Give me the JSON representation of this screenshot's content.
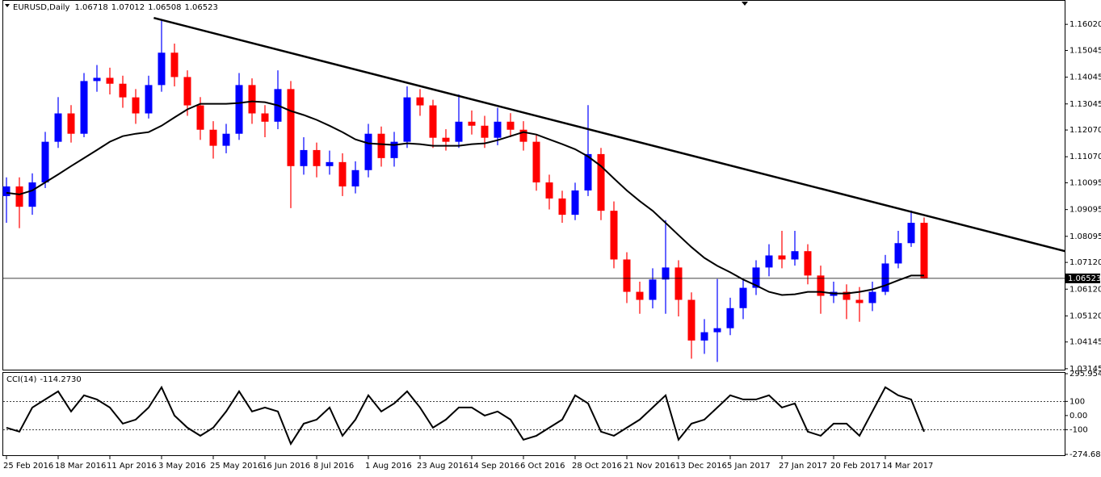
{
  "header": {
    "symbol": "EURUSD,Daily",
    "open": 1.06718,
    "high": 1.07012,
    "low": 1.06508,
    "close": 1.06523
  },
  "chart_data": [
    {
      "type": "candlestick",
      "categories": [
        "25 Feb 2016",
        null,
        null,
        null,
        "18 Mar 2016",
        null,
        null,
        null,
        "11 Apr 2016",
        null,
        null,
        null,
        "3 May 2016",
        null,
        null,
        null,
        "25 May 2016",
        null,
        null,
        null,
        "16 Jun 2016",
        null,
        null,
        null,
        "8 Jul 2016",
        null,
        null,
        null,
        "1 Aug 2016",
        null,
        null,
        null,
        "23 Aug 2016",
        null,
        null,
        null,
        "14 Sep 2016",
        null,
        null,
        null,
        "6 Oct 2016",
        null,
        null,
        null,
        "28 Oct 2016",
        null,
        null,
        null,
        "21 Nov 2016",
        null,
        null,
        null,
        "13 Dec 2016",
        null,
        null,
        null,
        "5 Jan 2017",
        null,
        null,
        null,
        "27 Jan 2017",
        null,
        null,
        null,
        "20 Feb 2017",
        null,
        null,
        null,
        "14 Mar 2017",
        null,
        null,
        null
      ],
      "open": [
        1.096,
        1.0996,
        1.092,
        1.1011,
        1.1163,
        1.1269,
        1.1193,
        1.139,
        1.1402,
        1.138,
        1.1329,
        1.1269,
        1.1375,
        1.1496,
        1.1405,
        1.1299,
        1.1208,
        1.1148,
        1.1193,
        1.1375,
        1.1269,
        1.1238,
        1.136,
        1.1072,
        1.1132,
        1.1072,
        1.1087,
        1.0996,
        1.1057,
        1.1193,
        1.1102,
        1.1163,
        1.1329,
        1.1299,
        1.1178,
        1.1163,
        1.1238,
        1.1223,
        1.1178,
        1.1238,
        1.1208,
        1.1163,
        1.1011,
        1.0951,
        1.089,
        1.0981,
        1.1117,
        1.0905,
        1.0723,
        1.0602,
        1.0572,
        1.0648,
        1.0693,
        1.0572,
        1.042,
        1.0451,
        1.0466,
        1.0541,
        1.0617,
        1.0693,
        1.0738,
        1.0723,
        1.0754,
        1.0663,
        1.0587,
        1.0602,
        1.0572,
        1.056,
        1.0602,
        1.0708,
        1.0784,
        1.086
      ],
      "high": [
        1.103,
        1.103,
        1.1045,
        1.12,
        1.133,
        1.13,
        1.142,
        1.145,
        1.144,
        1.141,
        1.136,
        1.141,
        1.1616,
        1.153,
        1.143,
        1.133,
        1.124,
        1.123,
        1.142,
        1.14,
        1.13,
        1.143,
        1.139,
        1.118,
        1.116,
        1.113,
        1.112,
        1.109,
        1.123,
        1.122,
        1.12,
        1.137,
        1.136,
        1.132,
        1.121,
        1.134,
        1.128,
        1.126,
        1.129,
        1.127,
        1.124,
        1.119,
        1.104,
        1.098,
        1.101,
        1.13,
        1.114,
        1.094,
        1.075,
        1.064,
        1.069,
        1.087,
        1.072,
        1.06,
        1.05,
        1.065,
        1.058,
        1.065,
        1.072,
        1.078,
        1.083,
        1.083,
        1.078,
        1.07,
        1.064,
        1.063,
        1.062,
        1.064,
        1.074,
        1.083,
        1.0906,
        1.088
      ],
      "low": [
        1.086,
        1.084,
        1.089,
        1.099,
        1.114,
        1.116,
        1.118,
        1.135,
        1.134,
        1.129,
        1.123,
        1.125,
        1.135,
        1.137,
        1.126,
        1.117,
        1.11,
        1.112,
        1.117,
        1.123,
        1.118,
        1.121,
        1.0915,
        1.104,
        1.103,
        1.104,
        1.096,
        1.097,
        1.103,
        1.107,
        1.107,
        1.114,
        1.126,
        1.114,
        1.113,
        1.114,
        1.119,
        1.114,
        1.115,
        1.118,
        1.113,
        1.098,
        1.091,
        1.086,
        1.087,
        1.096,
        1.087,
        1.069,
        1.056,
        1.052,
        1.054,
        1.052,
        1.051,
        1.0352,
        1.037,
        1.034,
        1.044,
        1.05,
        1.059,
        1.066,
        1.069,
        1.07,
        1.063,
        1.052,
        1.056,
        1.05,
        1.049,
        1.053,
        1.059,
        1.069,
        1.077,
        1.06508
      ],
      "close": [
        1.0996,
        1.092,
        1.1011,
        1.1163,
        1.1269,
        1.1193,
        1.139,
        1.1402,
        1.138,
        1.1329,
        1.1269,
        1.1375,
        1.1496,
        1.1405,
        1.1299,
        1.1208,
        1.1148,
        1.1193,
        1.1375,
        1.1269,
        1.1238,
        1.136,
        1.1072,
        1.1132,
        1.1072,
        1.1087,
        1.0996,
        1.1057,
        1.1193,
        1.1102,
        1.1163,
        1.1329,
        1.1299,
        1.1178,
        1.1163,
        1.1238,
        1.1223,
        1.1178,
        1.1238,
        1.1208,
        1.1163,
        1.1011,
        1.0951,
        1.089,
        1.0981,
        1.1117,
        1.0905,
        1.0723,
        1.0602,
        1.0572,
        1.0648,
        1.0693,
        1.0572,
        1.042,
        1.0451,
        1.0466,
        1.0541,
        1.0617,
        1.0693,
        1.0738,
        1.0723,
        1.0754,
        1.0663,
        1.0587,
        1.0602,
        1.0572,
        1.056,
        1.0602,
        1.0708,
        1.0784,
        1.086,
        1.06523
      ],
      "up_color": "#0000ff",
      "down_color": "#ff0000",
      "ma": {
        "color": "#000000",
        "values": [
          1.0972,
          1.0966,
          1.0981,
          1.1011,
          1.1041,
          1.1072,
          1.1102,
          1.1132,
          1.1163,
          1.1184,
          1.1193,
          1.1199,
          1.1223,
          1.1254,
          1.1284,
          1.1305,
          1.1305,
          1.1305,
          1.1308,
          1.1314,
          1.1311,
          1.1299,
          1.1278,
          1.1263,
          1.1245,
          1.1223,
          1.1199,
          1.1172,
          1.1157,
          1.1154,
          1.1151,
          1.1157,
          1.1154,
          1.1148,
          1.1148,
          1.1148,
          1.1154,
          1.1157,
          1.1169,
          1.1184,
          1.1199,
          1.119,
          1.1172,
          1.1154,
          1.1135,
          1.1108,
          1.1072,
          1.1026,
          1.0981,
          1.0941,
          1.0905,
          1.086,
          1.0814,
          1.0769,
          1.0729,
          1.0699,
          1.0675,
          1.0648,
          1.0626,
          1.0602,
          1.059,
          1.0593,
          1.0602,
          1.0602,
          1.0596,
          1.0596,
          1.0602,
          1.0611,
          1.0626,
          1.0645,
          1.0663,
          1.0663
        ]
      },
      "trendline": {
        "x": [
          11.4,
          81.9
        ],
        "values": [
          1.1626,
          1.0754
        ]
      },
      "current_price": 1.06523,
      "ylim": [
        1.0305,
        1.1693
      ],
      "yticks": [
        {
          "value": 1.1602,
          "label": "1.16020"
        },
        {
          "value": 1.15045,
          "label": "1.15045"
        },
        {
          "value": 1.14045,
          "label": "1.14045"
        },
        {
          "value": 1.13045,
          "label": "1.13045"
        },
        {
          "value": 1.1207,
          "label": "1.12070"
        },
        {
          "value": 1.1107,
          "label": "1.11070"
        },
        {
          "value": 1.10095,
          "label": "1.10095"
        },
        {
          "value": 1.09095,
          "label": "1.09095"
        },
        {
          "value": 1.08095,
          "label": "1.08095"
        },
        {
          "value": 1.0712,
          "label": "1.07120"
        },
        {
          "value": 1.0612,
          "label": "1.06120"
        },
        {
          "value": 1.0512,
          "label": "1.05120"
        },
        {
          "value": 1.04145,
          "label": "1.04145"
        },
        {
          "value": 1.03145,
          "label": "1.03145"
        }
      ]
    },
    {
      "type": "line",
      "title": "CCI(14)",
      "current_value": {
        "value": -114.273,
        "label": "-114.2730"
      },
      "color": "#000000",
      "values": [
        -86,
        -114,
        57,
        114,
        171,
        29,
        143,
        114,
        57,
        -57,
        -29,
        57,
        200,
        0,
        -86,
        -143,
        -86,
        29,
        171,
        29,
        57,
        29,
        -200,
        -57,
        -29,
        57,
        -143,
        -29,
        143,
        29,
        86,
        171,
        57,
        -86,
        -29,
        57,
        57,
        0,
        29,
        -29,
        -171,
        -143,
        -86,
        -29,
        143,
        86,
        -114,
        -143,
        -86,
        -29,
        57,
        143,
        -171,
        -57,
        -29,
        57,
        143,
        114,
        114,
        143,
        57,
        86,
        -114,
        -143,
        -57,
        -57,
        -143,
        29,
        200,
        143,
        114,
        -114.273
      ],
      "ylim": [
        -274.6882,
        295.9546
      ],
      "yticks": [
        295.9546,
        100,
        {
          "value": 0,
          "label": "0.00"
        },
        -100,
        -274.6882
      ],
      "levels": [
        100,
        -100
      ]
    }
  ]
}
